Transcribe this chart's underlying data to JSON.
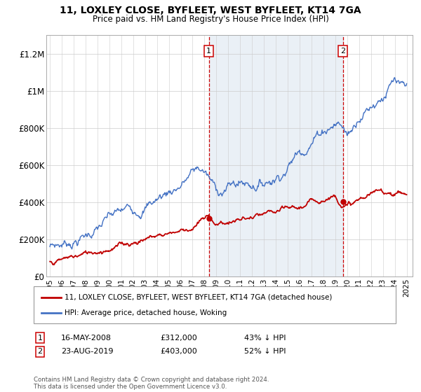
{
  "title": "11, LOXLEY CLOSE, BYFLEET, WEST BYFLEET, KT14 7GA",
  "subtitle": "Price paid vs. HM Land Registry's House Price Index (HPI)",
  "footer": "Contains HM Land Registry data © Crown copyright and database right 2024.\nThis data is licensed under the Open Government Licence v3.0.",
  "legend_line1": "11, LOXLEY CLOSE, BYFLEET, WEST BYFLEET, KT14 7GA (detached house)",
  "legend_line2": "HPI: Average price, detached house, Woking",
  "sale1_label": "1",
  "sale1_date": "16-MAY-2008",
  "sale1_price": "£312,000",
  "sale1_hpi": "43% ↓ HPI",
  "sale1_x": 2008.37,
  "sale1_y": 312000,
  "sale2_label": "2",
  "sale2_date": "23-AUG-2019",
  "sale2_price": "£403,000",
  "sale2_hpi": "52% ↓ HPI",
  "sale2_x": 2019.64,
  "sale2_y": 403000,
  "hpi_color": "#4472c4",
  "price_color": "#c00000",
  "sale_marker_color": "#c00000",
  "vline_color": "#cc0000",
  "shade_color": "#dce6f1",
  "ylim": [
    0,
    1300000
  ],
  "xlim_start": 1994.7,
  "xlim_end": 2025.5,
  "yticks": [
    0,
    200000,
    400000,
    600000,
    800000,
    1000000,
    1200000
  ],
  "ytick_labels": [
    "£0",
    "£200K",
    "£400K",
    "£600K",
    "£800K",
    "£1M",
    "£1.2M"
  ],
  "xticks": [
    1995,
    1996,
    1997,
    1998,
    1999,
    2000,
    2001,
    2002,
    2003,
    2004,
    2005,
    2006,
    2007,
    2008,
    2009,
    2010,
    2011,
    2012,
    2013,
    2014,
    2015,
    2016,
    2017,
    2018,
    2019,
    2020,
    2021,
    2022,
    2023,
    2024,
    2025
  ],
  "hpi_anchors_x": [
    1995,
    1996,
    1997,
    1998,
    1999,
    2000,
    2001,
    2002,
    2003,
    2004,
    2005,
    2006,
    2007,
    2007.5,
    2008,
    2009,
    2009.5,
    2010,
    2011,
    2012,
    2013,
    2014,
    2015,
    2016,
    2016.5,
    2017,
    2018,
    2019,
    2019.5,
    2020,
    2020.5,
    2021,
    2022,
    2023,
    2023.5,
    2024,
    2024.5,
    2025
  ],
  "hpi_anchors_y": [
    160000,
    175000,
    200000,
    230000,
    265000,
    310000,
    330000,
    360000,
    395000,
    430000,
    470000,
    510000,
    570000,
    585000,
    570000,
    460000,
    470000,
    490000,
    510000,
    510000,
    520000,
    560000,
    620000,
    700000,
    730000,
    760000,
    820000,
    850000,
    840000,
    780000,
    820000,
    900000,
    950000,
    1010000,
    1040000,
    1060000,
    1000000,
    980000
  ],
  "price_anchors_x": [
    1995,
    1996,
    1997,
    1998,
    1999,
    2000,
    2001,
    2002,
    2003,
    2004,
    2005,
    2006,
    2007,
    2008,
    2008.37,
    2009,
    2010,
    2011,
    2012,
    2013,
    2014,
    2015,
    2016,
    2017,
    2018,
    2019,
    2019.64,
    2020,
    2021,
    2022,
    2023,
    2024,
    2025
  ],
  "price_anchors_y": [
    80000,
    90000,
    105000,
    120000,
    140000,
    162000,
    175000,
    190000,
    210000,
    225000,
    240000,
    255000,
    270000,
    310000,
    312000,
    285000,
    295000,
    305000,
    310000,
    318000,
    330000,
    345000,
    360000,
    390000,
    420000,
    445000,
    403000,
    390000,
    410000,
    440000,
    455000,
    460000,
    450000
  ]
}
